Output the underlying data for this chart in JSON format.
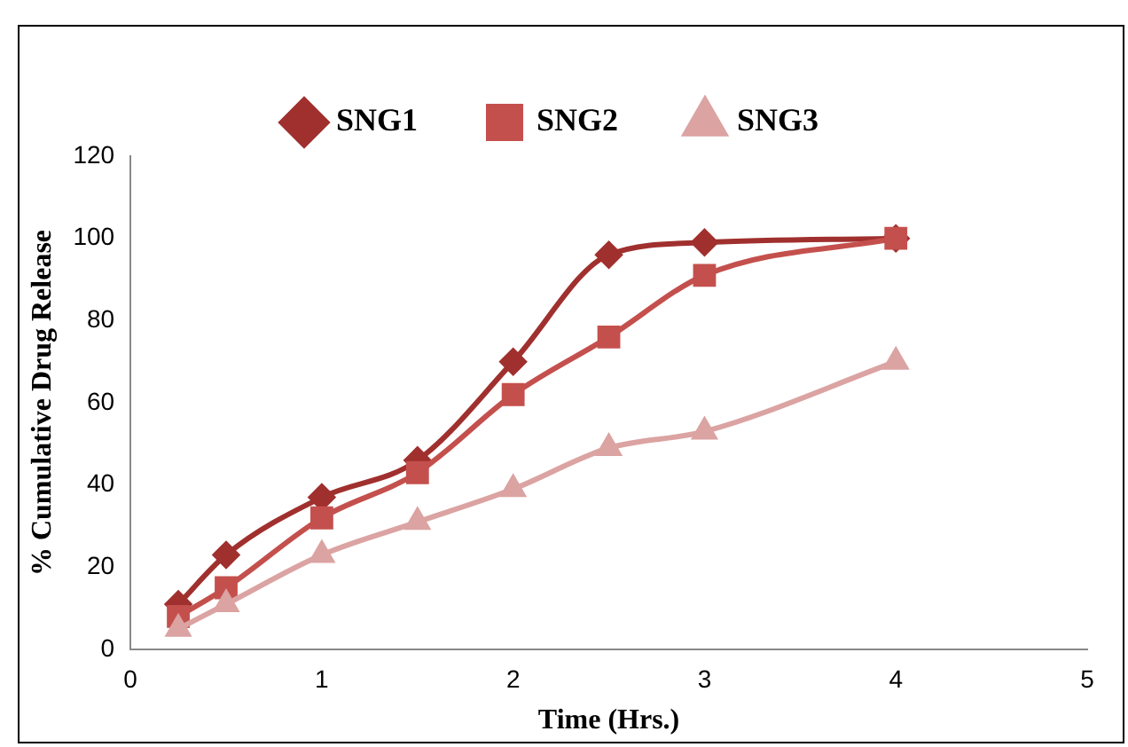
{
  "chart_data": {
    "type": "line",
    "xlabel": "Time (Hrs.)",
    "ylabel": "% Cumulative Drug Release",
    "x": [
      0.25,
      0.5,
      1,
      1.5,
      2,
      2.5,
      3,
      4
    ],
    "series": [
      {
        "name": "SNG1",
        "color": "#a0302e",
        "marker": "diamond",
        "values": [
          11,
          23,
          37,
          46,
          70,
          96,
          99,
          100
        ]
      },
      {
        "name": "SNG2",
        "color": "#c4504d",
        "marker": "square",
        "values": [
          8,
          15,
          32,
          43,
          62,
          76,
          91,
          100
        ]
      },
      {
        "name": "SNG3",
        "color": "#dba3a2",
        "marker": "triangle",
        "values": [
          5,
          11,
          23,
          31,
          39,
          49,
          53,
          70
        ]
      }
    ],
    "xlim": [
      0,
      5
    ],
    "xticks": [
      0,
      1,
      2,
      3,
      4,
      5
    ],
    "ylim": [
      0,
      120
    ],
    "yticks": [
      0,
      20,
      40,
      60,
      80,
      100,
      120
    ],
    "grid": false,
    "legend": "top"
  }
}
